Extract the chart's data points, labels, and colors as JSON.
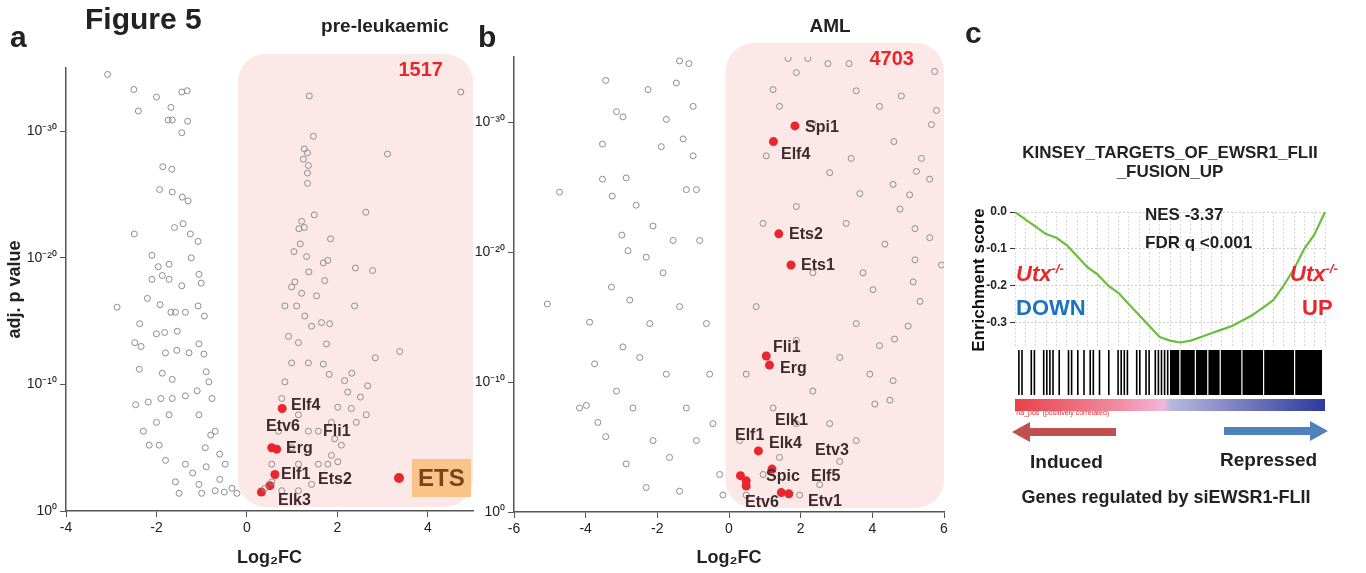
{
  "chart_data": [
    {
      "type": "scatter",
      "title": "pre-leukaemic",
      "xlabel": "Log₂FC",
      "ylabel": "adj. p value",
      "xlim": [
        -4,
        5
      ],
      "xticks": [
        -4,
        -2,
        0,
        2,
        4
      ],
      "ylim": [
        1,
        1e-35
      ],
      "yticks": [
        {
          "value": 1,
          "label": "10⁰"
        },
        {
          "value": 1e-10,
          "label": "10⁻¹⁰"
        },
        {
          "value": 1e-20,
          "label": "10⁻²⁰"
        },
        {
          "value": 1e-30,
          "label": "10⁻³⁰"
        }
      ],
      "log": "y",
      "marker": "circle",
      "legend": "bottom right",
      "bands": [
        {
          "axis": "x",
          "from": -0.2,
          "to": 5,
          "label": "1517",
          "color": "#fde8e8"
        }
      ],
      "annotations": [
        "Figure 5",
        "a",
        "Elf4",
        "Etv6",
        "Erg",
        "Fli1",
        "Elf1",
        "Ets2",
        "Elk3"
      ],
      "series": [
        {
          "color": "#8e8e8e",
          "x": [
            -3.08,
            -2.5,
            -2.0,
            -1.68,
            -1.44,
            -1.32,
            -2.4,
            -1.74,
            -1.65,
            -1.31,
            -1.44,
            -1.86,
            -1.66,
            -1.93,
            -1.65,
            -1.43,
            -1.3,
            -1.6,
            -1.41,
            -2.49,
            -1.25,
            -1.08,
            -1.23,
            -2.1,
            -1.96,
            -1.72,
            -2.1,
            -1.87,
            -1.72,
            -1.44,
            -1.06,
            -1.01,
            -2.2,
            -2.87,
            -1.92,
            -1.68,
            -1.58,
            -1.36,
            -0.94,
            -1.08,
            -2.37,
            -2.0,
            -1.82,
            -1.54,
            -2.48,
            -2.34,
            -1.8,
            -1.55,
            -1.28,
            -1.06,
            -0.95,
            -2.38,
            -1.87,
            -1.65,
            -0.84,
            -2.46,
            -2.18,
            -1.9,
            -1.65,
            -1.36,
            -2.29,
            -2.0,
            -1.72,
            -1.06,
            -0.77,
            -0.7,
            -0.48,
            -0.33,
            -0.22,
            -0.92,
            -1.36,
            -1.8,
            -1.58,
            -1.06,
            -0.7,
            -1.94,
            -2.16,
            -1.2,
            -0.9,
            -0.6,
            -0.5,
            -1.0,
            -1.5,
            -0.8,
            -0.6,
            -1.1,
            -0.9,
            1.38,
            4.73,
            1.47,
            1.27,
            1.34,
            1.25,
            1.36,
            1.34,
            1.34,
            3.11,
            1.49,
            2.63,
            1.21,
            1.27,
            1.15,
            1.85,
            1.18,
            1.04,
            1.32,
            1.37,
            1.69,
            1.79,
            2.4,
            2.78,
            1.72,
            1.06,
            0.99,
            1.21,
            1.54,
            2.38,
            0.84,
            1.1,
            1.28,
            1.43,
            1.65,
            1.83,
            1.76,
            3.38,
            2.84,
            0.92,
            1.14,
            0.99,
            1.36,
            1.69,
            1.82,
            2.32,
            2.16,
            2.67,
            2.51,
            2.23,
            2.01,
            2.64,
            2.42,
            2.31,
            1.94,
            2.09,
            1.87,
            2.01,
            1.79,
            0.84,
            0.77,
            0.7,
            0.55,
            0.4,
            0.77,
            1.14,
            1.43,
            1.58,
            1.36,
            1.14,
            0.99,
            1.58,
            1.87,
            0.55,
            1.14
          ],
          "values": [
            3.2e-35,
            5e-34,
            2e-33,
            1.3e-32,
            7.9e-34,
            6.3e-34,
            2.5e-32,
            1.3e-31,
            1.3e-31,
            1.6e-31,
            1.3e-30,
            6.3e-28,
            1e-27,
            4e-26,
            6.3e-26,
            1.6e-25,
            3.2e-25,
            4e-23,
            2e-23,
            1.3e-22,
            1.3e-22,
            5e-22,
            1e-20,
            6.3e-21,
            5e-20,
            3.2e-20,
            5e-19,
            2.5e-19,
            5e-19,
            1.6e-18,
            2e-19,
            1e-18,
            1.6e-17,
            7.9e-17,
            5e-17,
            2e-16,
            2e-16,
            2e-16,
            4e-16,
            6.3e-17,
            1.6e-15,
            1e-14,
            7.9e-15,
            6.3e-15,
            5e-14,
            1e-13,
            3.2e-13,
            2e-13,
            3.2e-13,
            6.3e-14,
            4e-13,
            6.3e-12,
            1.3e-11,
            4e-11,
            6.3e-11,
            4e-09,
            2.5e-09,
            1.3e-09,
            1.3e-09,
            7.9e-10,
            5e-07,
            1e-07,
            2.5e-08,
            2.5e-08,
            1.3e-09,
            5e-07,
            0.0002,
            0.016,
            0.04,
            1e-05,
            0.0002,
            0.0001,
            0.005,
            0.0079,
            0.025,
            6.3e-06,
            6.3e-06,
            0.001,
            0.00032,
            0.0032,
            0.032,
            0.04,
            0.04,
            1e-06,
            3.2e-05,
            3.2e-10,
            1e-11,
            1.6e-33,
            7.9e-34,
            2.5e-30,
            2.5e-29,
            5e-29,
            1.6e-28,
            5e-28,
            2e-27,
            1.3e-26,
            6.3e-29,
            4e-24,
            2.5e-24,
            1.3e-23,
            4e-23,
            5e-23,
            3.2e-22,
            7.9e-22,
            3.2e-21,
            7.9e-21,
            1.3e-19,
            2.5e-20,
            1.6e-20,
            6.3e-20,
            1e-19,
            6.3e-19,
            7.9e-19,
            2e-18,
            6.3e-18,
            1e-17,
            6.3e-17,
            6.3e-17,
            6.3e-17,
            4e-16,
            2.5e-15,
            1.3e-15,
            1.6e-15,
            6.3e-14,
            2.5e-13,
            7.9e-13,
            1.6e-14,
            5e-14,
            2e-12,
            2e-12,
            2.5e-12,
            1.6e-11,
            1.3e-11,
            5e-11,
            1.3e-10,
            1e-09,
            4e-10,
            6.3e-09,
            2.5e-08,
            1e-07,
            7.9e-09,
            2e-06,
            6.3e-06,
            4e-05,
            0.00013,
            0.0002,
            6.3e-11,
            1.3e-09,
            5e-07,
            0.0002,
            0.016,
            0.025,
            0.025,
            0.0079,
            0.0002,
            5e-07,
            2.5e-08,
            1e-05,
            5e-07,
            1e-07,
            0.005,
            0.0002
          ]
        },
        {
          "name": "ETS",
          "color": "#e8262b",
          "x": [
            0.78,
            0.55,
            0.66,
            0.62,
            0.51,
            0.32
          ],
          "values": [
            7.9e-09,
            1e-05,
            1.3e-05,
            0.0013,
            0.01,
            0.032
          ]
        }
      ]
    },
    {
      "type": "scatter",
      "title": "AML",
      "xlabel": "Log₂FC",
      "xlim": [
        -6,
        6
      ],
      "xticks": [
        -6,
        -4,
        -2,
        0,
        2,
        4,
        6
      ],
      "ylim": [
        1,
        1e-35
      ],
      "yticks": [
        {
          "value": 1,
          "label": "10⁰"
        },
        {
          "value": 1e-10,
          "label": "10⁻¹⁰"
        },
        {
          "value": 1e-20,
          "label": "10⁻²⁰"
        },
        {
          "value": 1e-30,
          "label": "10⁻³⁰"
        }
      ],
      "log": "y",
      "marker": "circle",
      "bands": [
        {
          "axis": "x",
          "from": -0.1,
          "to": 6,
          "label": "4703",
          "color": "#fde8e8"
        }
      ],
      "annotations": [
        "b",
        "Spi1",
        "Elf4",
        "Ets2",
        "Ets1",
        "Fli1",
        "Erg",
        "Elk1",
        "Elf1",
        "Elk4",
        "Etv3",
        "Spic",
        "Elf5",
        "Etv6",
        "Etv1"
      ],
      "series": [
        {
          "color": "#8e8e8e",
          "x": [
            -1.38,
            -1.12,
            -3.44,
            -2.26,
            -3.14,
            -2.96,
            -3.53,
            -4.73,
            -3.53,
            -2.87,
            -3.26,
            -2.59,
            -2.99,
            -2.82,
            -5.07,
            -3.89,
            -3.75,
            -4.17,
            -3.98,
            -3.66,
            -3.44,
            -3.14,
            -2.96,
            -3.28,
            -2.77,
            -2.31,
            -2.12,
            -1.89,
            -1.75,
            -1.0,
            -1.0,
            -0.91,
            -0.82,
            -0.63,
            -0.54,
            -0.45,
            -0.26,
            -0.17,
            -2.31,
            -2.87,
            -2.12,
            -1.75,
            -1.38,
            -1.56,
            -1.19,
            -1.38,
            -0.91,
            -1.19,
            -1.66,
            -2.68,
            -2.49,
            -2.21,
            -1.84,
            -1.28,
            -1.47,
            1.65,
            2.2,
            2.76,
            3.35,
            5.74,
            1.23,
            3.55,
            4.81,
            5.79,
            5.65,
            4.6,
            5.37,
            3.41,
            5.23,
            5.6,
            5.04,
            3.65,
            4.77,
            4.58,
            5.19,
            5.6,
            5.93,
            5.19,
            4.35,
            5.14,
            5.33,
            5.0,
            4.62,
            4.2,
            4.58,
            4.07,
            3.55,
            3.09,
            2.53,
            1.97,
            0.48,
            0.3,
            0.48,
            0.76,
            0.95,
            1.04,
            1.41,
            1.88,
            2.34,
            2.81,
            3.27,
            3.74,
            3.55,
            3.09,
            2.34,
            1.88,
            1.41,
            1.88,
            2.34,
            1.88,
            4.2,
            4.02,
            2.81,
            1.23,
            0.95,
            3.93,
            4.49
          ],
          "values": [
            2e-35,
            3.2e-35,
            6.3e-34,
            3.2e-33,
            1.6e-31,
            4e-31,
            5e-29,
            2.5e-25,
            2.5e-26,
            2e-26,
            5e-25,
            2.5e-24,
            5e-22,
            7.9e-21,
            1e-16,
            2.5e-15,
            4e-12,
            1e-08,
            6.3e-09,
            1.3e-07,
            1.6e-06,
            5e-10,
            2e-13,
            5e-18,
            5e-17,
            2.5e-20,
            1e-22,
            7.9e-29,
            6.3e-31,
            6.3e-32,
            4e-28,
            1.6e-25,
            1.3e-21,
            3.2e-15,
            2.5e-11,
            1.6e-07,
            0.0013,
            0.05,
            0.013,
            0.0002,
            3.2e-06,
            2.5e-11,
            1.6e-16,
            1.3e-21,
            1.6e-25,
            0.025,
            3.2e-06,
            1e-08,
            6.3e-05,
            1e-08,
            1.3e-12,
            3.2e-15,
            4e-19,
            2e-29,
            1e-33,
            1.3e-35,
            1.3e-35,
            3.2e-35,
            3.2e-35,
            1.3e-34,
            3.2e-33,
            4e-33,
            1e-32,
            1.3e-31,
            1.6e-30,
            3.2e-29,
            6.3e-28,
            6.3e-28,
            6.3e-27,
            2.5e-26,
            4e-25,
            3.2e-25,
            5e-24,
            6.3e-26,
            1.6e-22,
            7.9e-22,
            1e-19,
            4e-20,
            2.5e-21,
            2e-18,
            6.3e-17,
            5e-15,
            5e-14,
            1.6e-13,
            7.9e-11,
            5e-09,
            3.2e-06,
            0.00013,
            0.0079,
            0.05,
            0.05,
            3.2e-06,
            2.5e-11,
            1.6e-16,
            6.3e-23,
            4e-28,
            6.3e-32,
            1.6e-34,
            1.3e-30,
            7.9e-27,
            6.3e-23,
            4e-19,
            3.2e-15,
            1.3e-12,
            5e-10,
            1.6e-07,
            6.3e-05,
            6.3e-14,
            4e-19,
            3.2e-24,
            6.3e-32,
            7.9e-18,
            1.6e-07,
            1e-08,
            0.0013,
            2.5e-11,
            2.5e-09
          ]
        },
        {
          "color": "#e8262b",
          "x": [
            1.84,
            1.24,
            1.39,
            1.73,
            1.04,
            1.13,
            0.82,
            1.2,
            0.32,
            0.48,
            0.48,
            1.46,
            1.67
          ],
          "values": [
            2e-30,
            3.2e-29,
            4e-22,
            1e-19,
            1e-12,
            5e-12,
            2e-05,
            0.0005,
            0.0016,
            0.004,
            0.01,
            0.032,
            0.04
          ]
        }
      ]
    },
    {
      "type": "line",
      "title": "KINSEY_TARGETS_OF_EWSR1_FLII_FUSION_UP",
      "xlabel": "Genes regulated by siEWSR1-FLII",
      "ylabel": "Enrichment score",
      "ylim": [
        -0.37,
        0
      ],
      "yticks": [
        {
          "value": 0,
          "label": "0.0"
        },
        -0.1,
        -0.2,
        -0.3
      ],
      "grid": true,
      "tick_labels": "y",
      "marker": "none",
      "categories": [
        null,
        null,
        null,
        null,
        null,
        null,
        null,
        null,
        null,
        null,
        null,
        null,
        null,
        null,
        null,
        null,
        null,
        null,
        null,
        null,
        null,
        null,
        null,
        null,
        null,
        null,
        null,
        null,
        null,
        null,
        null
      ],
      "annotations": [
        "c",
        "NES -3.37",
        "FDR q <0.001",
        "Utx$^{-/-}$",
        "DOWN",
        "Utx$^{-/-}$",
        "UP",
        "'na_pos' (positively correlated)",
        "Induced",
        "Repressed"
      ],
      "series": [
        {
          "color": "#6abf3a",
          "values": [
            0,
            -0.02,
            -0.04,
            -0.06,
            -0.07,
            -0.09,
            -0.12,
            -0.15,
            -0.17,
            -0.2,
            -0.22,
            -0.25,
            -0.28,
            -0.31,
            -0.34,
            -0.35,
            -0.355,
            -0.35,
            -0.34,
            -0.33,
            -0.32,
            -0.31,
            -0.295,
            -0.28,
            -0.26,
            -0.24,
            -0.2,
            -0.155,
            -0.1,
            -0.06,
            0
          ]
        }
      ]
    }
  ]
}
